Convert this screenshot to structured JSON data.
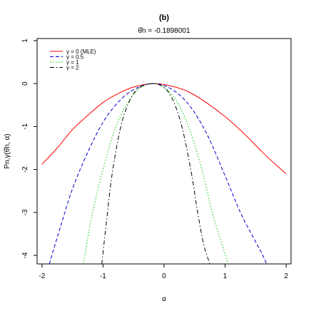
{
  "chart_data": {
    "type": "line",
    "title": "(b)",
    "subtitle": "θ̂n = -0.1898001",
    "xlabel": "α",
    "ylabel": "Pn,γ(θ̂n, α)",
    "xlim": [
      -2.08,
      2.08
    ],
    "ylim": [
      -4.2,
      1.05
    ],
    "xticks": [
      -2,
      -1,
      0,
      1,
      2
    ],
    "yticks": [
      1,
      0,
      -1,
      -2,
      -3,
      -4
    ],
    "xtick_labels": [
      "-2",
      "-1",
      "0",
      "1",
      "2"
    ],
    "ytick_labels": [
      "1",
      "0",
      "-1",
      "-2",
      "-3",
      "-4"
    ],
    "grid": false,
    "legend_position": "top-left",
    "series": [
      {
        "name": "γ = 0 (MLE)",
        "color": "#ff0000",
        "dash": "solid",
        "x": [
          -2.0,
          -1.75,
          -1.5,
          -1.25,
          -1.0,
          -0.75,
          -0.5,
          -0.19,
          0.1,
          0.4,
          0.7,
          1.0,
          1.3,
          1.6,
          1.8,
          2.0
        ],
        "y": [
          -1.88,
          -1.5,
          -1.07,
          -0.74,
          -0.44,
          -0.23,
          -0.08,
          0.0,
          -0.05,
          -0.19,
          -0.45,
          -0.77,
          -1.15,
          -1.58,
          -1.85,
          -2.1
        ]
      },
      {
        "name": "γ = 0.5",
        "color": "#0000cc",
        "dash": "dashed",
        "x": [
          -1.88,
          -1.7,
          -1.5,
          -1.25,
          -1.0,
          -0.75,
          -0.5,
          -0.19,
          0.1,
          0.4,
          0.7,
          1.0,
          1.25,
          1.45,
          1.6,
          1.68
        ],
        "y": [
          -4.2,
          -3.35,
          -2.45,
          -1.6,
          -0.9,
          -0.43,
          -0.14,
          0.0,
          -0.11,
          -0.48,
          -1.17,
          -2.15,
          -3.0,
          -3.55,
          -3.95,
          -4.2
        ]
      },
      {
        "name": "γ = 1",
        "color": "#00cc00",
        "dash": "dotted",
        "x": [
          -1.32,
          -1.2,
          -1.0,
          -0.8,
          -0.6,
          -0.4,
          -0.19,
          0.0,
          0.2,
          0.4,
          0.6,
          0.8,
          0.95,
          1.05
        ],
        "y": [
          -4.2,
          -3.2,
          -2.0,
          -1.05,
          -0.45,
          -0.11,
          0.0,
          -0.09,
          -0.4,
          -1.0,
          -1.9,
          -3.05,
          -3.75,
          -4.2
        ]
      },
      {
        "name": "γ = 2",
        "color": "#000000",
        "dash": "dashdot",
        "x": [
          -1.02,
          -0.95,
          -0.85,
          -0.7,
          -0.55,
          -0.4,
          -0.19,
          0.0,
          0.15,
          0.3,
          0.45,
          0.55,
          0.65,
          0.75
        ],
        "y": [
          -4.2,
          -3.3,
          -2.1,
          -0.95,
          -0.36,
          -0.09,
          0.0,
          -0.09,
          -0.4,
          -1.05,
          -2.1,
          -3.0,
          -3.75,
          -4.2
        ]
      }
    ]
  }
}
